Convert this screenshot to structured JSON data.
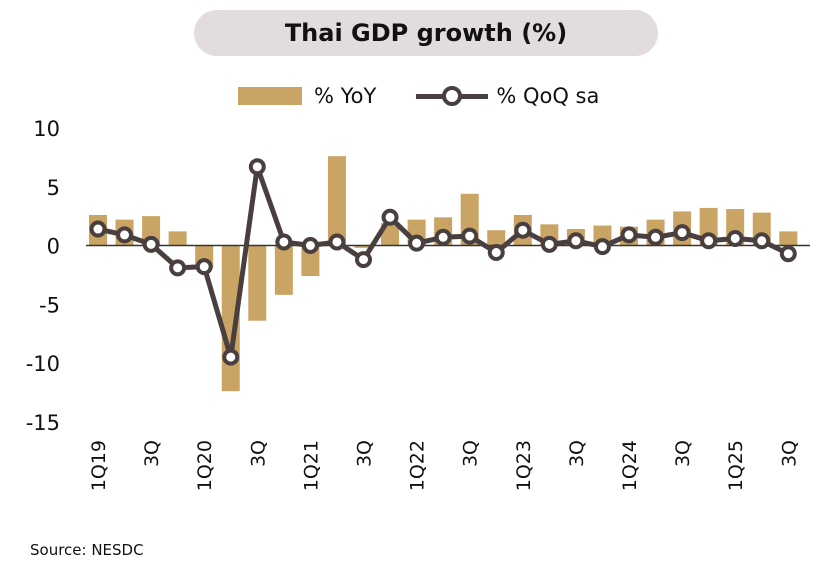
{
  "chart_data": {
    "type": "bar",
    "title": "Thai GDP growth (%)",
    "categories": [
      "1Q19",
      "2Q19",
      "3Q19",
      "4Q19",
      "1Q20",
      "2Q20",
      "3Q20",
      "4Q20",
      "1Q21",
      "2Q21",
      "3Q21",
      "4Q21",
      "1Q22",
      "2Q22",
      "3Q22",
      "4Q22",
      "1Q23",
      "2Q23",
      "3Q23",
      "4Q23",
      "1Q24",
      "2Q24",
      "3Q24",
      "4Q24",
      "1Q25",
      "2Q25",
      "3Q25"
    ],
    "tick_labels": [
      "1Q19",
      "",
      "3Q",
      "",
      "1Q20",
      "",
      "3Q",
      "",
      "1Q21",
      "",
      "3Q",
      "",
      "1Q22",
      "",
      "3Q",
      "",
      "1Q23",
      "",
      "3Q",
      "",
      "1Q24",
      "",
      "3Q",
      "",
      "1Q25",
      "",
      "3Q"
    ],
    "series": [
      {
        "name": "%  YoY",
        "type": "bar",
        "color": "#c9a464",
        "values": [
          2.6,
          2.2,
          2.5,
          1.2,
          -1.9,
          -12.4,
          -6.4,
          -4.2,
          -2.6,
          7.6,
          -0.2,
          1.9,
          2.2,
          2.4,
          4.4,
          1.3,
          2.6,
          1.8,
          1.4,
          1.7,
          1.6,
          2.2,
          2.9,
          3.2,
          3.1,
          2.8,
          1.2
        ]
      },
      {
        "name": "% QoQ sa",
        "type": "line",
        "color": "#4a3f3f",
        "values": [
          1.4,
          0.9,
          0.1,
          -1.9,
          -1.8,
          -9.5,
          6.7,
          0.3,
          0.0,
          0.3,
          -1.2,
          2.4,
          0.2,
          0.7,
          0.8,
          -0.6,
          1.3,
          0.1,
          0.4,
          -0.1,
          0.9,
          0.7,
          1.1,
          0.4,
          0.6,
          0.4,
          -0.7
        ]
      }
    ],
    "yticks": [
      10,
      5,
      0,
      -5,
      -10,
      -15
    ],
    "ylim": [
      -15,
      10
    ],
    "grid": false,
    "legend": "top"
  },
  "source": "Source: NESDC"
}
